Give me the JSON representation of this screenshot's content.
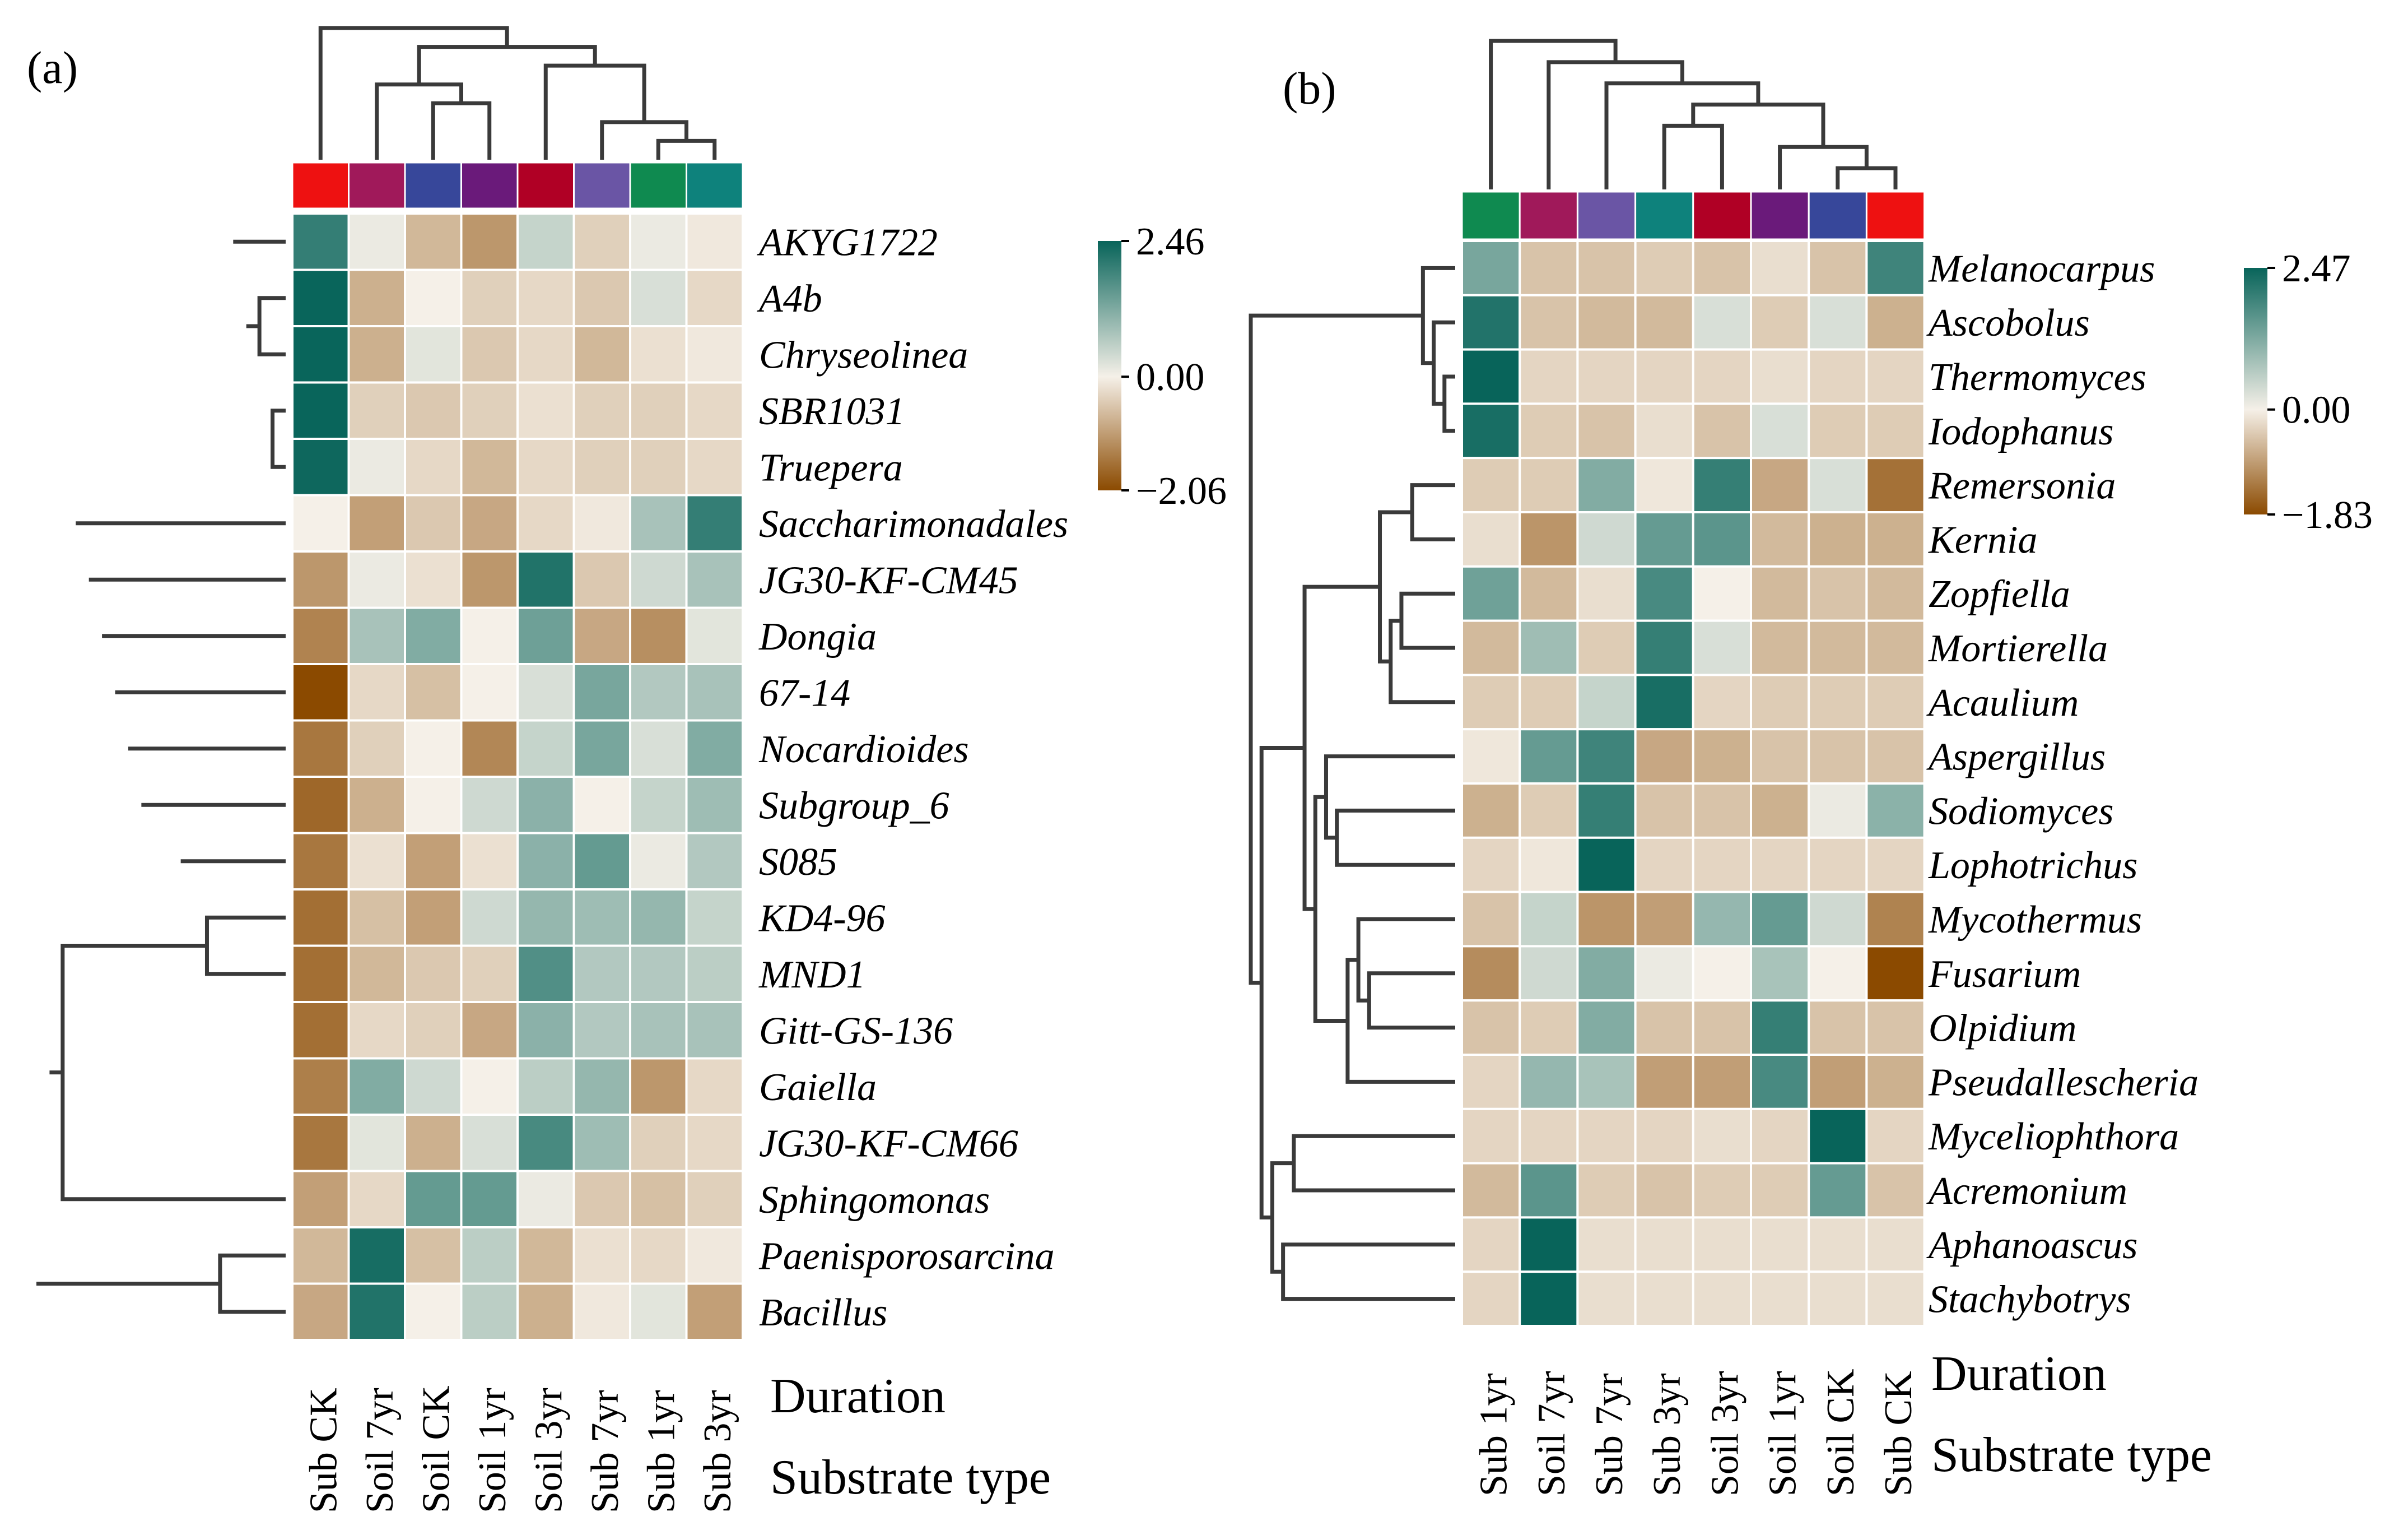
{
  "panels": [
    {
      "label": "(a)"
    },
    {
      "label": "(b)"
    }
  ],
  "axis_titles": {
    "duration": "Duration",
    "substrate": "Substrate type"
  },
  "chart_data": [
    {
      "type": "heatmap",
      "panel": "(a)",
      "title": "",
      "columns": [
        "Sub CK",
        "Soil 7yr",
        "Soil CK",
        "Soil 1yr",
        "Soil 3yr",
        "Sub 7yr",
        "Sub 1yr",
        "Sub 3yr"
      ],
      "column_colors": [
        "#ee1111",
        "#a0195a",
        "#37479a",
        "#6a1a7a",
        "#b00025",
        "#6a55a5",
        "#0f8a50",
        "#0e827c"
      ],
      "rows": [
        "AKYG1722",
        "A4b",
        "Chryseolinea",
        "SBR1031",
        "Truepera",
        "Saccharimonadales",
        "JG30-KF-CM45",
        "Dongia",
        "67-14",
        "Nocardioides",
        "Subgroup_6",
        "S085",
        "KD4-96",
        "MND1",
        "Gitt-GS-136",
        "Gaiella",
        "JG30-KF-CM66",
        "Sphingomonas",
        "Paenisporosarcina",
        "Bacillus"
      ],
      "values": [
        [
          2.0,
          0.1,
          -0.7,
          -1.1,
          0.5,
          -0.4,
          0.1,
          -0.1
        ],
        [
          2.45,
          -0.8,
          0.0,
          -0.4,
          -0.3,
          -0.5,
          0.3,
          -0.3
        ],
        [
          2.45,
          -0.8,
          0.2,
          -0.5,
          -0.3,
          -0.7,
          -0.2,
          -0.1
        ],
        [
          2.45,
          -0.4,
          -0.5,
          -0.4,
          -0.2,
          -0.4,
          -0.4,
          -0.3
        ],
        [
          2.4,
          0.1,
          -0.3,
          -0.7,
          -0.3,
          -0.4,
          -0.4,
          -0.3
        ],
        [
          0.0,
          -1.0,
          -0.5,
          -0.9,
          -0.3,
          -0.1,
          0.8,
          2.0
        ],
        [
          -1.1,
          0.1,
          -0.2,
          -1.1,
          2.2,
          -0.5,
          0.4,
          0.8
        ],
        [
          -1.35,
          0.8,
          1.2,
          0.0,
          1.4,
          -0.9,
          -1.2,
          0.2
        ],
        [
          -2.06,
          -0.3,
          -0.6,
          0.0,
          0.3,
          1.3,
          0.7,
          0.8
        ],
        [
          -1.5,
          -0.4,
          0.0,
          -1.3,
          0.5,
          1.3,
          0.3,
          1.2
        ],
        [
          -1.7,
          -0.8,
          0.0,
          0.4,
          1.1,
          0.0,
          0.5,
          0.9
        ],
        [
          -1.5,
          -0.2,
          -1.0,
          -0.2,
          1.1,
          1.5,
          0.1,
          0.7
        ],
        [
          -1.6,
          -0.6,
          -1.0,
          0.4,
          1.0,
          0.9,
          1.0,
          0.5
        ],
        [
          -1.6,
          -0.7,
          -0.5,
          -0.4,
          1.7,
          0.7,
          0.7,
          0.6
        ],
        [
          -1.6,
          -0.3,
          -0.4,
          -0.9,
          1.1,
          0.7,
          0.8,
          0.8
        ],
        [
          -1.4,
          1.2,
          0.4,
          0.0,
          0.6,
          1.0,
          -1.1,
          -0.3
        ],
        [
          -1.5,
          0.2,
          -0.8,
          0.3,
          1.8,
          0.9,
          -0.4,
          -0.3
        ],
        [
          -1.0,
          -0.3,
          1.5,
          1.5,
          0.1,
          -0.5,
          -0.6,
          -0.4
        ],
        [
          -0.7,
          2.3,
          -0.6,
          0.6,
          -0.7,
          -0.2,
          -0.3,
          -0.1
        ],
        [
          -0.9,
          2.2,
          0.0,
          0.6,
          -0.8,
          -0.1,
          0.2,
          -1.0
        ]
      ],
      "colorbar": {
        "max": 2.46,
        "mid": 0.0,
        "min": -2.06,
        "max_label": "2.46",
        "mid_label": "0.00",
        "min_label": "−2.06"
      },
      "column_dendrogram": [
        [
          6,
          7
        ],
        [
          5,
          8
        ],
        [
          2,
          3
        ],
        [
          1,
          10
        ],
        [
          4,
          9
        ],
        [
          11,
          12
        ],
        [
          0,
          13
        ]
      ],
      "row_dendrogram": [
        [
          3,
          4
        ],
        [
          1,
          2
        ],
        [
          21,
          22
        ],
        [
          0,
          23
        ],
        [
          18,
          19
        ],
        [
          12,
          13
        ],
        [
          26,
          14
        ],
        [
          11,
          27
        ],
        [
          28,
          15
        ],
        [
          29,
          16
        ],
        [
          10,
          30
        ],
        [
          9,
          31
        ],
        [
          8,
          32
        ],
        [
          7,
          33
        ],
        [
          6,
          34
        ],
        [
          5,
          35
        ],
        [
          17,
          25
        ],
        [
          36,
          37
        ],
        [
          24,
          38
        ]
      ]
    },
    {
      "type": "heatmap",
      "panel": "(b)",
      "title": "",
      "columns": [
        "Sub 1yr",
        "Soil 7yr",
        "Sub 7yr",
        "Sub 3yr",
        "Soil 3yr",
        "Soil 1yr",
        "Soil CK",
        "Sub CK"
      ],
      "column_colors": [
        "#0f8a50",
        "#a0195a",
        "#6a55a5",
        "#0e827c",
        "#b00025",
        "#6a1a7a",
        "#37479a",
        "#ee1111"
      ],
      "rows": [
        "Melanocarpus",
        "Ascobolus",
        "Thermomyces",
        "Iodophanus",
        "Remersonia",
        "Kernia",
        "Zopfiella",
        "Mortierella",
        "Acaulium",
        "Aspergillus",
        "Sodiomyces",
        "Lophotrichus",
        "Mycothermus",
        "Fusarium",
        "Olpidium",
        "Pseudallescheria",
        "Myceliophthora",
        "Acremonium",
        "Aphanoascus",
        "Stachybotrys"
      ],
      "values": [
        [
          1.3,
          -0.5,
          -0.5,
          -0.4,
          -0.5,
          -0.2,
          -0.5,
          1.9
        ],
        [
          2.2,
          -0.5,
          -0.6,
          -0.6,
          0.3,
          -0.4,
          0.3,
          -0.7
        ],
        [
          2.47,
          -0.3,
          -0.3,
          -0.3,
          -0.3,
          -0.2,
          -0.3,
          -0.3
        ],
        [
          2.3,
          -0.4,
          -0.5,
          -0.2,
          -0.5,
          0.3,
          -0.4,
          -0.4
        ],
        [
          -0.4,
          -0.4,
          1.2,
          -0.1,
          2.0,
          -0.8,
          0.3,
          -1.4
        ],
        [
          -0.2,
          -1.0,
          0.4,
          1.5,
          1.6,
          -0.6,
          -0.7,
          -0.7
        ],
        [
          1.4,
          -0.6,
          -0.2,
          1.8,
          0.0,
          -0.6,
          -0.5,
          -0.6
        ],
        [
          -0.6,
          0.9,
          -0.4,
          2.0,
          0.3,
          -0.6,
          -0.6,
          -0.6
        ],
        [
          -0.4,
          -0.4,
          0.5,
          2.3,
          -0.3,
          -0.4,
          -0.4,
          -0.4
        ],
        [
          -0.1,
          1.5,
          1.9,
          -0.8,
          -0.7,
          -0.5,
          -0.5,
          -0.5
        ],
        [
          -0.7,
          -0.4,
          2.0,
          -0.5,
          -0.5,
          -0.7,
          0.1,
          1.1
        ],
        [
          -0.3,
          -0.1,
          2.47,
          -0.3,
          -0.3,
          -0.3,
          -0.3,
          -0.3
        ],
        [
          -0.5,
          0.5,
          -1.0,
          -0.9,
          1.0,
          1.5,
          0.4,
          -1.2
        ],
        [
          -1.1,
          0.4,
          1.2,
          0.1,
          0.0,
          0.8,
          0.0,
          -1.83
        ],
        [
          -0.5,
          -0.4,
          1.2,
          -0.5,
          -0.5,
          2.0,
          -0.5,
          -0.5
        ],
        [
          -0.3,
          1.0,
          0.8,
          -0.9,
          -0.9,
          1.8,
          -0.9,
          -0.7
        ],
        [
          -0.3,
          -0.3,
          -0.3,
          -0.3,
          -0.2,
          -0.3,
          2.47,
          -0.3
        ],
        [
          -0.6,
          1.6,
          -0.4,
          -0.5,
          -0.4,
          -0.4,
          1.5,
          -0.5
        ],
        [
          -0.3,
          2.47,
          -0.2,
          -0.2,
          -0.2,
          -0.2,
          -0.2,
          -0.2
        ],
        [
          -0.3,
          2.47,
          -0.2,
          -0.2,
          -0.2,
          -0.2,
          -0.2,
          -0.2
        ]
      ],
      "colorbar": {
        "max": 2.47,
        "mid": 0.0,
        "min": -1.83,
        "max_label": "2.47",
        "mid_label": "0.00",
        "min_label": "−1.83"
      },
      "column_dendrogram": [
        [
          6,
          7
        ],
        [
          5,
          8
        ],
        [
          3,
          4
        ],
        [
          10,
          9
        ],
        [
          2,
          11
        ],
        [
          1,
          12
        ],
        [
          0,
          13
        ]
      ],
      "row_dendrogram": [
        [
          2,
          3
        ],
        [
          1,
          20
        ],
        [
          0,
          21
        ],
        [
          4,
          5
        ],
        [
          6,
          7
        ],
        [
          24,
          8
        ],
        [
          23,
          25
        ],
        [
          13,
          14
        ],
        [
          12,
          27
        ],
        [
          28,
          15
        ],
        [
          10,
          11
        ],
        [
          9,
          30
        ],
        [
          29,
          31
        ],
        [
          26,
          32
        ],
        [
          16,
          17
        ],
        [
          18,
          19
        ],
        [
          34,
          35
        ],
        [
          33,
          36
        ],
        [
          22,
          37
        ]
      ]
    }
  ]
}
